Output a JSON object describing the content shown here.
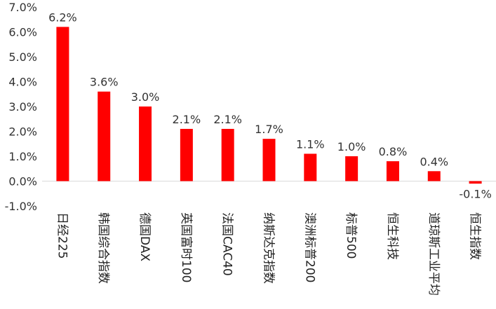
{
  "chart_data": {
    "type": "bar",
    "title": "",
    "xlabel": "",
    "ylabel": "",
    "categories": [
      "日经225",
      "韩国综合指数",
      "德国DAX",
      "英国富时100",
      "法国CAC40",
      "纳斯达克指数",
      "澳洲标普200",
      "标普500",
      "恒生科技",
      "道琼斯工业平均",
      "恒生指数"
    ],
    "values": [
      6.2,
      3.6,
      3.0,
      2.1,
      2.1,
      1.7,
      1.1,
      1.0,
      0.8,
      0.4,
      -0.1
    ],
    "value_labels": [
      "6.2%",
      "3.6%",
      "3.0%",
      "2.1%",
      "2.1%",
      "1.7%",
      "1.1%",
      "1.0%",
      "0.8%",
      "0.4%",
      "-0.1%"
    ],
    "ylim": [
      -1.0,
      7.0
    ],
    "yticks": [
      -1.0,
      0.0,
      1.0,
      2.0,
      3.0,
      4.0,
      5.0,
      6.0,
      7.0
    ],
    "ytick_labels": [
      "-1.0%",
      "0.0%",
      "1.0%",
      "2.0%",
      "3.0%",
      "4.0%",
      "5.0%",
      "6.0%",
      "7.0%"
    ],
    "grid": false,
    "legend": "none",
    "bar_color": "#ff0000"
  }
}
